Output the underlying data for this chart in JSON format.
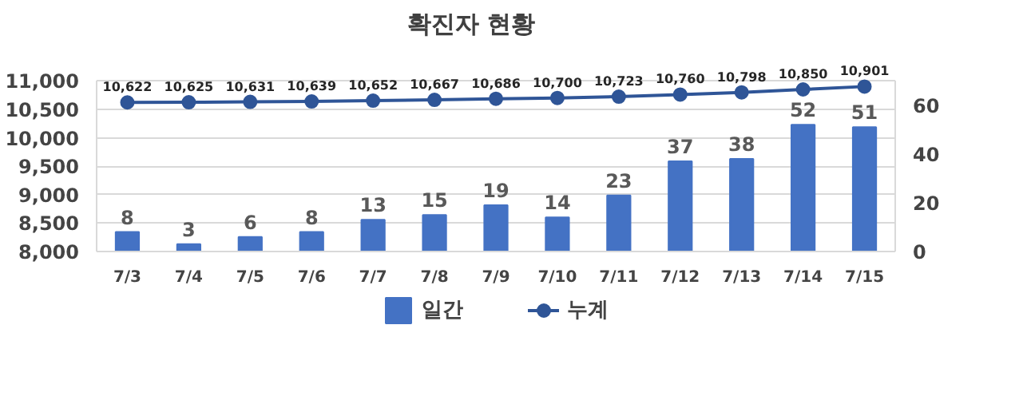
{
  "chart_data": {
    "type": "bar",
    "title": "확진자 현황",
    "categories": [
      "7/3",
      "7/4",
      "7/5",
      "7/6",
      "7/7",
      "7/8",
      "7/9",
      "7/10",
      "7/11",
      "7/12",
      "7/13",
      "7/14",
      "7/15"
    ],
    "series": [
      {
        "name": "일간",
        "axis": "y2",
        "color": "#4472c4",
        "values": [
          8,
          3,
          6,
          8,
          13,
          15,
          19,
          14,
          23,
          37,
          38,
          52,
          51
        ]
      },
      {
        "name": "누계",
        "type": "line",
        "color": "#2f5597",
        "marker": "circle",
        "values": [
          10622,
          10625,
          10631,
          10639,
          10652,
          10667,
          10686,
          10700,
          10723,
          10760,
          10798,
          10850,
          10901
        ],
        "value_labels": [
          "10,622",
          "10,625",
          "10,631",
          "10,639",
          "10,652",
          "10,667",
          "10,686",
          "10,700",
          "10,723",
          "10,760",
          "10,798",
          "10,850",
          "10,901"
        ]
      }
    ],
    "ylim": [
      8000,
      11000
    ],
    "yticks": [
      {
        "value": 8000,
        "label": "8,000"
      },
      {
        "value": 8500,
        "label": "8,500"
      },
      {
        "value": 9000,
        "label": "9,000"
      },
      {
        "value": 9500,
        "label": "9,500"
      },
      {
        "value": 10000,
        "label": "10,000"
      },
      {
        "value": 10500,
        "label": "10,500"
      },
      {
        "value": 11000,
        "label": "11,000"
      }
    ],
    "y2lim": [
      0,
      70
    ],
    "y2ticks": [
      0,
      20,
      40,
      60
    ],
    "grid": "y",
    "legend": "bottom",
    "data_labels": true
  }
}
